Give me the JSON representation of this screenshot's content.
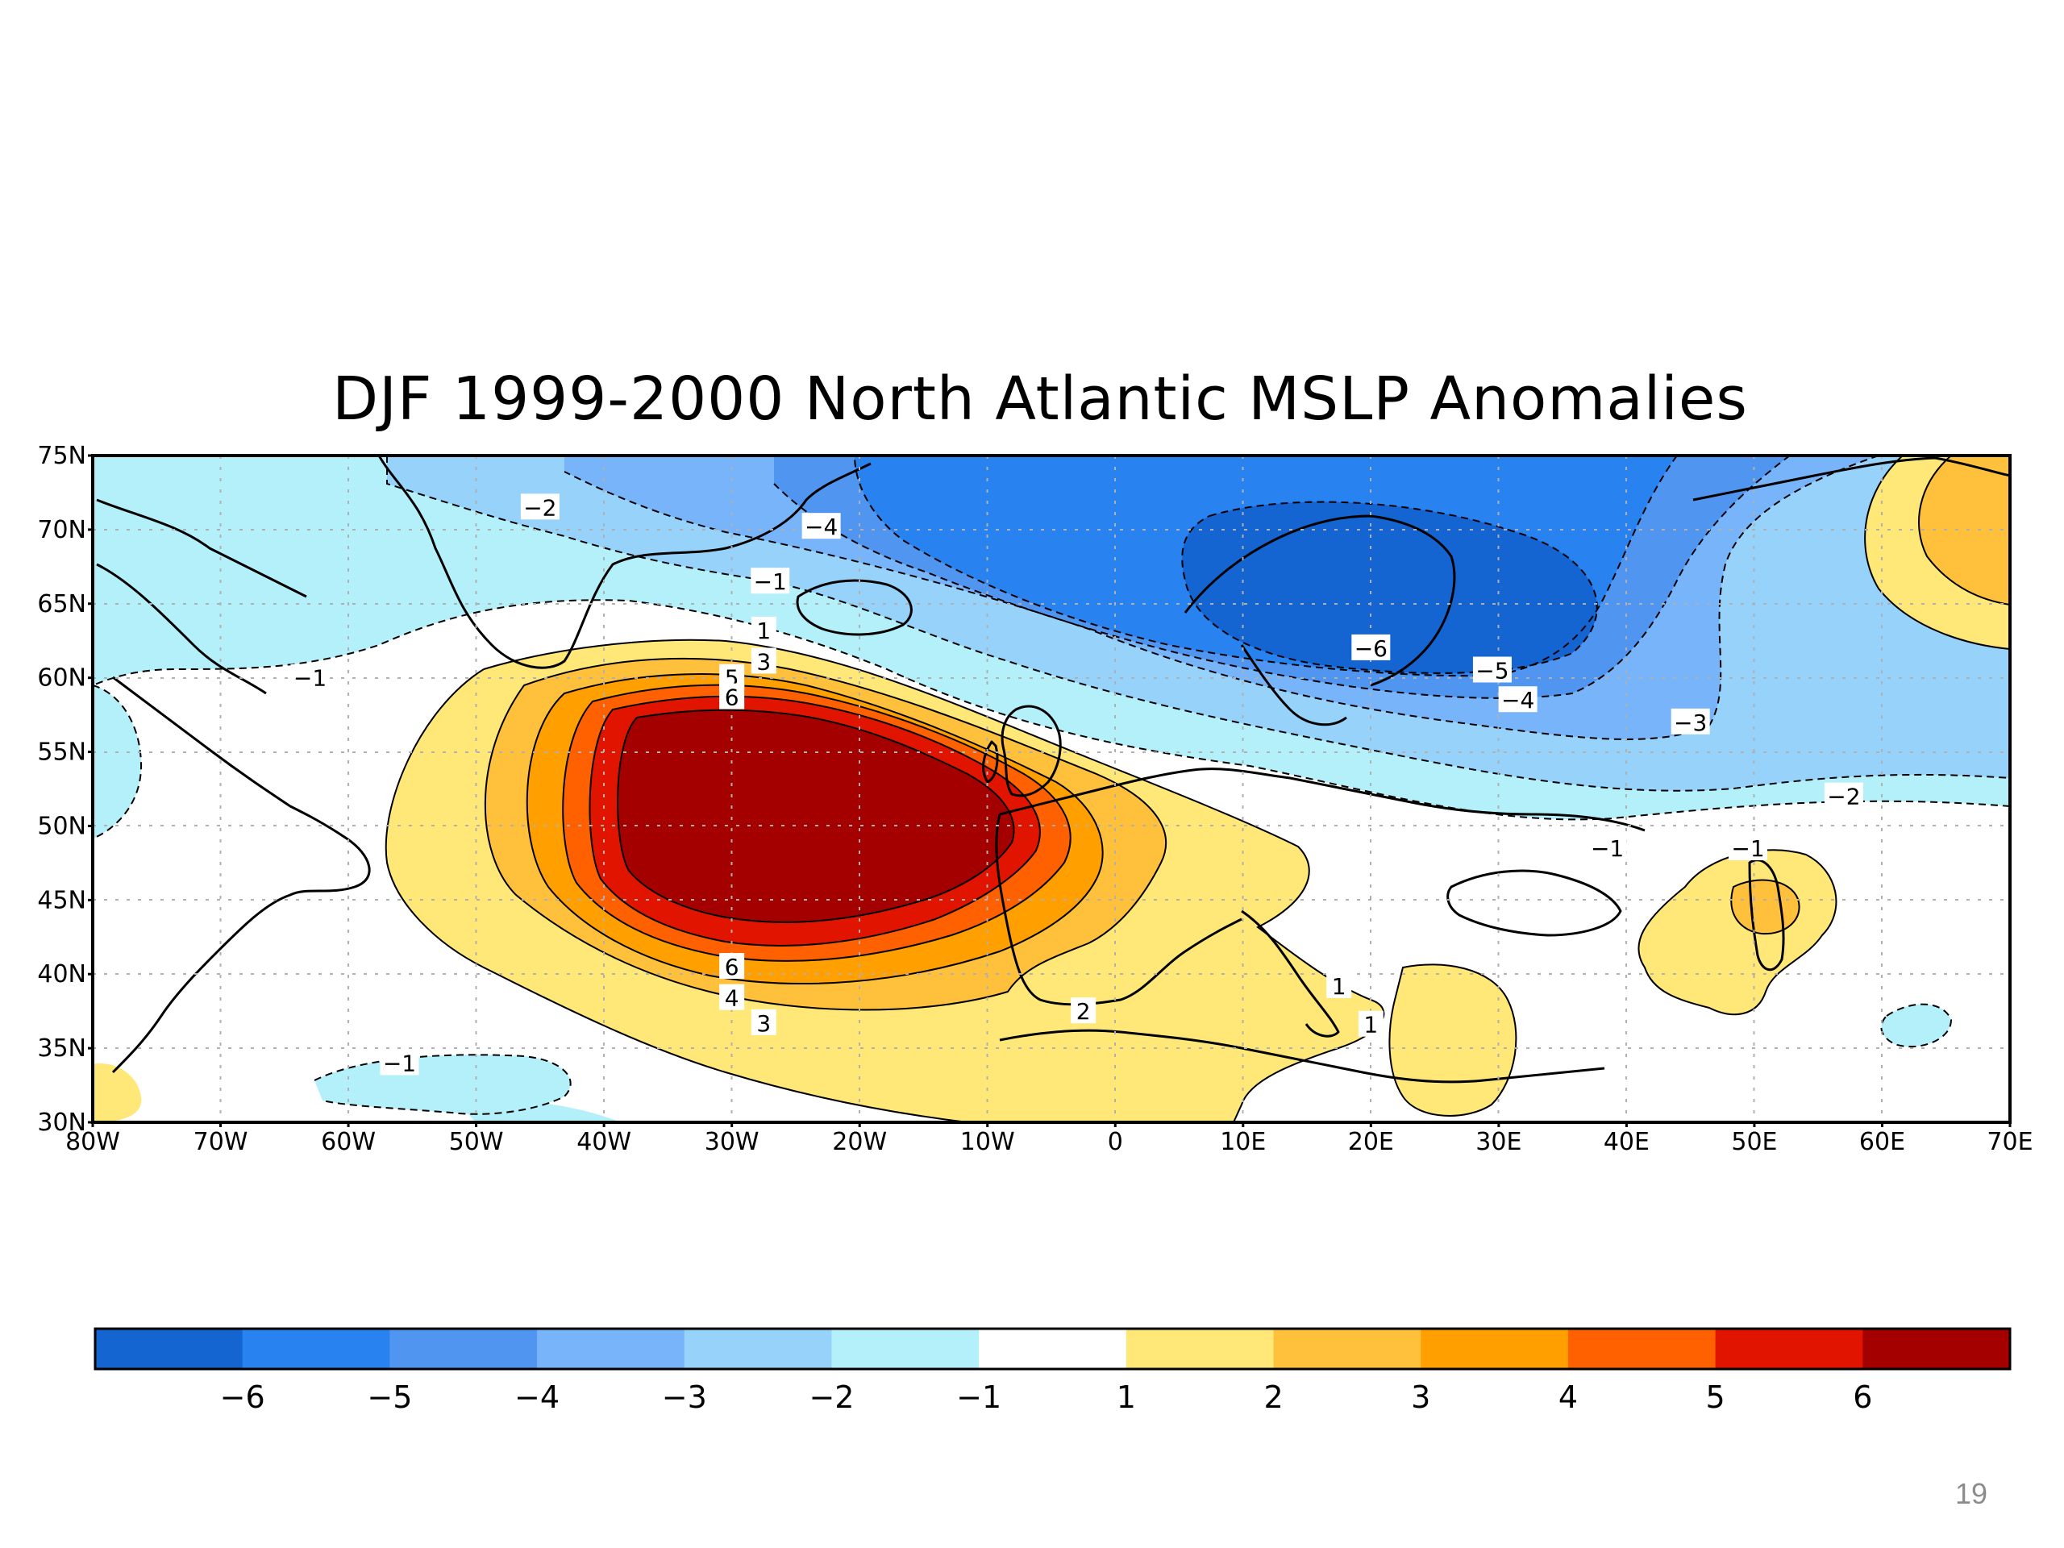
{
  "title": "DJF 1999-2000 North Atlantic MSLP Anomalies",
  "page_number": "19",
  "map": {
    "projection": "cylindrical equidistant",
    "lon_range": [
      -80,
      70
    ],
    "lat_range": [
      30,
      75
    ],
    "lon_tick_labels": [
      "80W",
      "70W",
      "60W",
      "50W",
      "40W",
      "30W",
      "20W",
      "10W",
      "0",
      "10E",
      "20E",
      "30E",
      "40E",
      "50E",
      "60E",
      "70E"
    ],
    "lat_tick_labels": [
      "30N",
      "35N",
      "40N",
      "45N",
      "50N",
      "55N",
      "60N",
      "65N",
      "70N",
      "75N"
    ],
    "grid": "dotted",
    "variable": "mean sea level pressure anomaly"
  },
  "colorbar": {
    "colors": [
      "#1464d2",
      "#2882f0",
      "#5096f0",
      "#78b4fa",
      "#96d2fa",
      "#b4f0fa",
      "#ffffff",
      "#ffe878",
      "#ffc03c",
      "#ffa000",
      "#ff6000",
      "#e11400",
      "#a50000"
    ],
    "tick_labels": [
      "−6",
      "−5",
      "−4",
      "−3",
      "−2",
      "−1",
      "1",
      "2",
      "3",
      "4",
      "5",
      "6"
    ]
  },
  "contour_labels": [
    {
      "text": "−2",
      "lon": -45,
      "lat": 71.5
    },
    {
      "text": "−4",
      "lon": -23,
      "lat": 70.2
    },
    {
      "text": "−1",
      "lon": -27,
      "lat": 66.5
    },
    {
      "text": "−1",
      "lon": -63,
      "lat": 60.0
    },
    {
      "text": "−6",
      "lon": 20,
      "lat": 62.0
    },
    {
      "text": "−5",
      "lon": 29.5,
      "lat": 60.5
    },
    {
      "text": "−4",
      "lon": 31.5,
      "lat": 58.5
    },
    {
      "text": "−3",
      "lon": 45,
      "lat": 57.0
    },
    {
      "text": "−2",
      "lon": 57,
      "lat": 52.0
    },
    {
      "text": "−1",
      "lon": 38.5,
      "lat": 48.5
    },
    {
      "text": "−1",
      "lon": 49.5,
      "lat": 48.5
    },
    {
      "text": "1",
      "lon": -27.5,
      "lat": 63.2
    },
    {
      "text": "3",
      "lon": -27.5,
      "lat": 61.1
    },
    {
      "text": "5",
      "lon": -30,
      "lat": 60.0
    },
    {
      "text": "6",
      "lon": -30,
      "lat": 58.7
    },
    {
      "text": "6",
      "lon": -30,
      "lat": 40.5
    },
    {
      "text": "4",
      "lon": -30,
      "lat": 38.4
    },
    {
      "text": "3",
      "lon": -27.5,
      "lat": 36.7
    },
    {
      "text": "2",
      "lon": -2.5,
      "lat": 37.5
    },
    {
      "text": "1",
      "lon": 17.5,
      "lat": 39.2
    },
    {
      "text": "1",
      "lon": 20,
      "lat": 36.6
    },
    {
      "text": "−1",
      "lon": -56,
      "lat": 34.0
    }
  ]
}
